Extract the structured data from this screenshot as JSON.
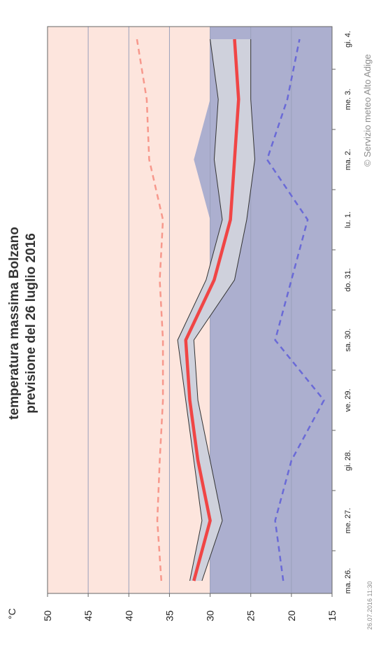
{
  "chart_data": {
    "type": "line",
    "title_line1": "temperatura massima Bolzano",
    "title_line2": "previsione del 26 luglio 2016",
    "unit": "°C",
    "ylim": [
      15,
      50
    ],
    "yticks": [
      "15",
      "20",
      "25",
      "30",
      "35",
      "40",
      "45",
      "50"
    ],
    "categories": [
      "ma. 26.",
      "me. 27.",
      "gi. 28.",
      "ve. 29.",
      "sa. 30.",
      "do. 31.",
      "lu. 1.",
      "ma. 2.",
      "me. 3.",
      "gi. 4."
    ],
    "grid": true,
    "series": [
      {
        "role": "upper-dashed",
        "values": [
          36,
          36.5,
          36.2,
          35.8,
          35.8,
          36.2,
          35.8,
          37.5,
          37.8,
          39
        ]
      },
      {
        "role": "lower-dashed",
        "values": [
          21,
          22,
          20,
          16,
          22,
          20,
          18,
          23,
          20.5,
          19
        ]
      },
      {
        "role": "main",
        "values": [
          32,
          30,
          31.5,
          32.5,
          33,
          29.5,
          27.5,
          27,
          26.5,
          27
        ]
      },
      {
        "role": "band-upper",
        "values": [
          32.5,
          31,
          32,
          33,
          34,
          30.5,
          28.5,
          29.5,
          29,
          30
        ]
      },
      {
        "role": "band-lower",
        "values": [
          31,
          28.5,
          30,
          31.5,
          32,
          27,
          25.5,
          24.5,
          25,
          25
        ]
      }
    ],
    "zone_boundary": [
      30,
      30,
      30,
      30,
      30,
      30,
      30,
      32,
      30,
      30
    ],
    "colors": {
      "warm_zone": "#fde5dd",
      "cool_zone": "#acafcf",
      "band": "#cfd1dc",
      "main_line": "#f04545",
      "upper_dashed": "#f7988c",
      "lower_dashed": "#6a6ad7",
      "grid": "#9aa0bb"
    },
    "copyright": "© Servizio meteo Alto Adige",
    "timestamp": "26.07.2016 11:30"
  }
}
